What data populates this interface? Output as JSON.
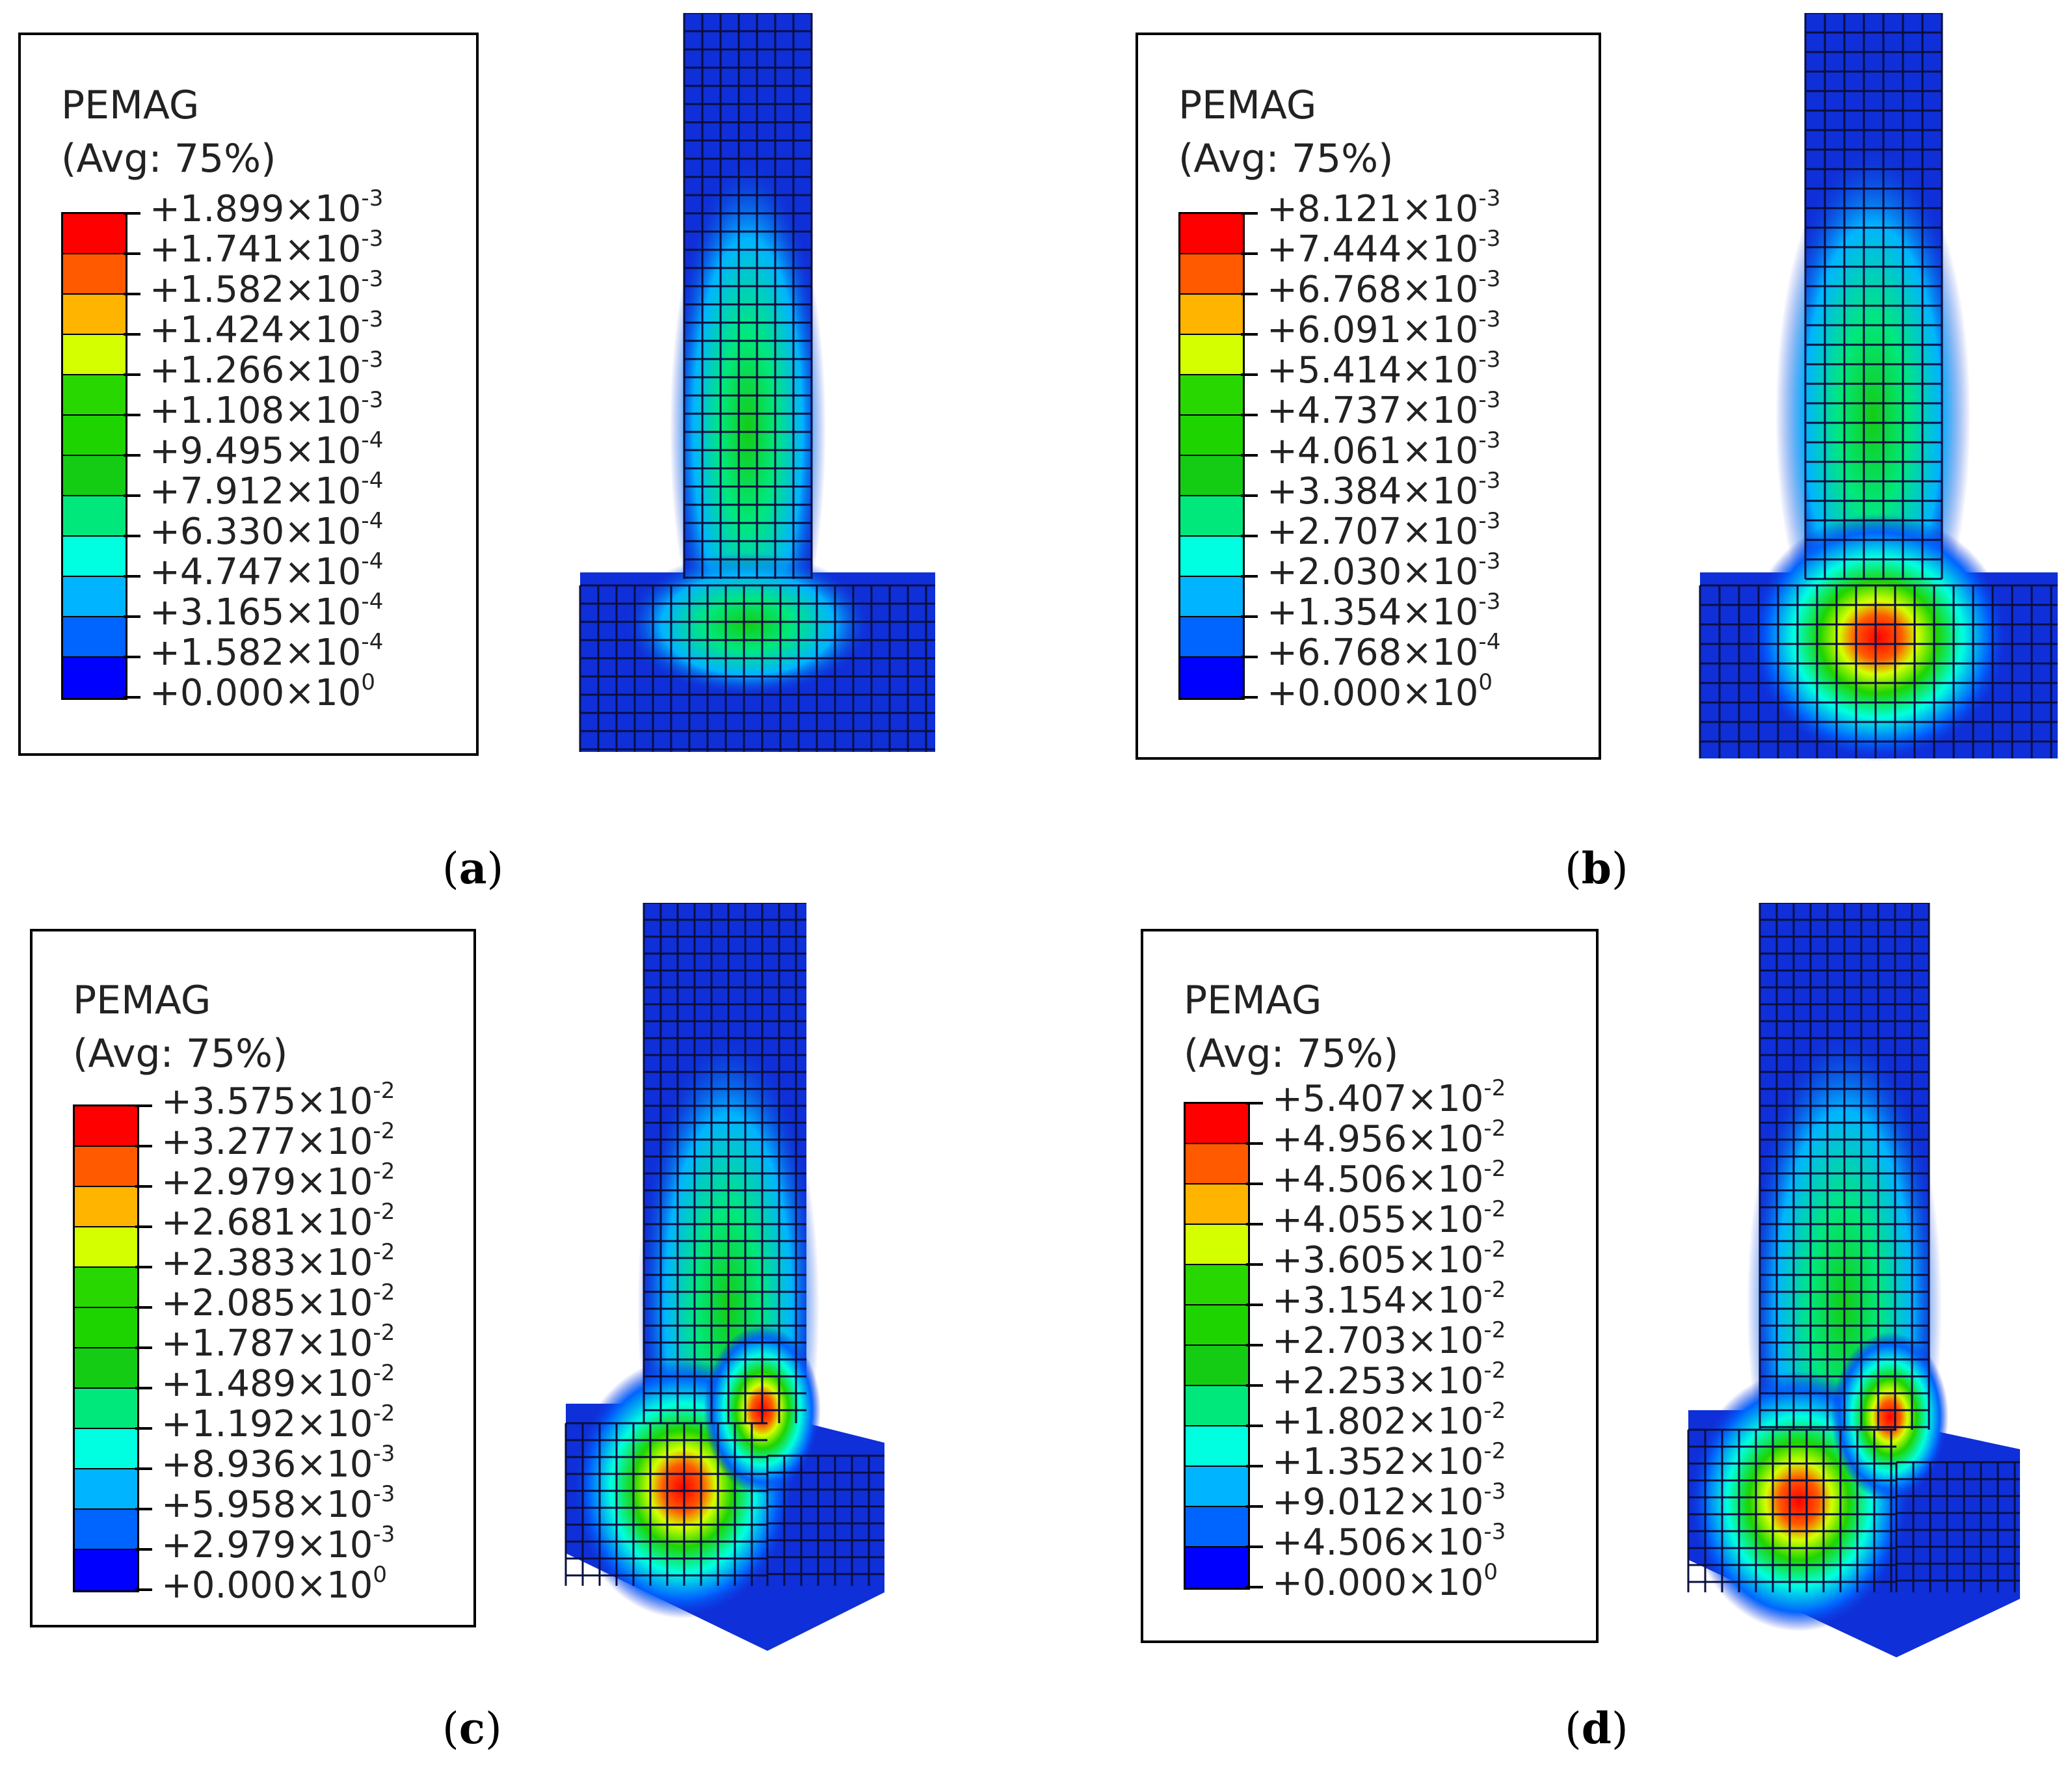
{
  "panels": [
    {
      "id": "a",
      "caption_letter": "a",
      "legend_title_line1": "PEMAG",
      "legend_title_line2": "(Avg: 75%)",
      "ticks": [
        {
          "mantissa": "+1.899",
          "exp": "-3"
        },
        {
          "mantissa": "+1.741",
          "exp": "-3"
        },
        {
          "mantissa": "+1.582",
          "exp": "-3"
        },
        {
          "mantissa": "+1.424",
          "exp": "-3"
        },
        {
          "mantissa": "+1.266",
          "exp": "-3"
        },
        {
          "mantissa": "+1.108",
          "exp": "-3"
        },
        {
          "mantissa": "+9.495",
          "exp": "-4"
        },
        {
          "mantissa": "+7.912",
          "exp": "-4"
        },
        {
          "mantissa": "+6.330",
          "exp": "-4"
        },
        {
          "mantissa": "+4.747",
          "exp": "-4"
        },
        {
          "mantissa": "+3.165",
          "exp": "-4"
        },
        {
          "mantissa": "+1.582",
          "exp": "-4"
        },
        {
          "mantissa": "+0.000",
          "exp": "0"
        }
      ]
    },
    {
      "id": "b",
      "caption_letter": "b",
      "legend_title_line1": "PEMAG",
      "legend_title_line2": "(Avg: 75%)",
      "ticks": [
        {
          "mantissa": "+8.121",
          "exp": "-3"
        },
        {
          "mantissa": "+7.444",
          "exp": "-3"
        },
        {
          "mantissa": "+6.768",
          "exp": "-3"
        },
        {
          "mantissa": "+6.091",
          "exp": "-3"
        },
        {
          "mantissa": "+5.414",
          "exp": "-3"
        },
        {
          "mantissa": "+4.737",
          "exp": "-3"
        },
        {
          "mantissa": "+4.061",
          "exp": "-3"
        },
        {
          "mantissa": "+3.384",
          "exp": "-3"
        },
        {
          "mantissa": "+2.707",
          "exp": "-3"
        },
        {
          "mantissa": "+2.030",
          "exp": "-3"
        },
        {
          "mantissa": "+1.354",
          "exp": "-3"
        },
        {
          "mantissa": "+6.768",
          "exp": "-4"
        },
        {
          "mantissa": "+0.000",
          "exp": "0"
        }
      ]
    },
    {
      "id": "c",
      "caption_letter": "c",
      "legend_title_line1": "PEMAG",
      "legend_title_line2": "(Avg: 75%)",
      "ticks": [
        {
          "mantissa": "+3.575",
          "exp": "-2"
        },
        {
          "mantissa": "+3.277",
          "exp": "-2"
        },
        {
          "mantissa": "+2.979",
          "exp": "-2"
        },
        {
          "mantissa": "+2.681",
          "exp": "-2"
        },
        {
          "mantissa": "+2.383",
          "exp": "-2"
        },
        {
          "mantissa": "+2.085",
          "exp": "-2"
        },
        {
          "mantissa": "+1.787",
          "exp": "-2"
        },
        {
          "mantissa": "+1.489",
          "exp": "-2"
        },
        {
          "mantissa": "+1.192",
          "exp": "-2"
        },
        {
          "mantissa": "+8.936",
          "exp": "-3"
        },
        {
          "mantissa": "+5.958",
          "exp": "-3"
        },
        {
          "mantissa": "+2.979",
          "exp": "-3"
        },
        {
          "mantissa": "+0.000",
          "exp": "0"
        }
      ]
    },
    {
      "id": "d",
      "caption_letter": "d",
      "legend_title_line1": "PEMAG",
      "legend_title_line2": "(Avg: 75%)",
      "ticks": [
        {
          "mantissa": "+5.407",
          "exp": "-2"
        },
        {
          "mantissa": "+4.956",
          "exp": "-2"
        },
        {
          "mantissa": "+4.506",
          "exp": "-2"
        },
        {
          "mantissa": "+4.055",
          "exp": "-2"
        },
        {
          "mantissa": "+3.605",
          "exp": "-2"
        },
        {
          "mantissa": "+3.154",
          "exp": "-2"
        },
        {
          "mantissa": "+2.703",
          "exp": "-2"
        },
        {
          "mantissa": "+2.253",
          "exp": "-2"
        },
        {
          "mantissa": "+1.802",
          "exp": "-2"
        },
        {
          "mantissa": "+1.352",
          "exp": "-2"
        },
        {
          "mantissa": "+9.012",
          "exp": "-3"
        },
        {
          "mantissa": "+4.506",
          "exp": "-3"
        },
        {
          "mantissa": "+0.000",
          "exp": "0"
        }
      ]
    }
  ],
  "colormap": [
    "#ff0000",
    "#ff5a00",
    "#ffb400",
    "#d4ff00",
    "#28d700",
    "#1ed400",
    "#14cc14",
    "#00e87c",
    "#00ffe0",
    "#00b4ff",
    "#0064ff",
    "#0000ff"
  ],
  "mesh_base_color": "#0f2fd8",
  "mesh_line_color": "#0a0f40",
  "times_symbol": "×10"
}
